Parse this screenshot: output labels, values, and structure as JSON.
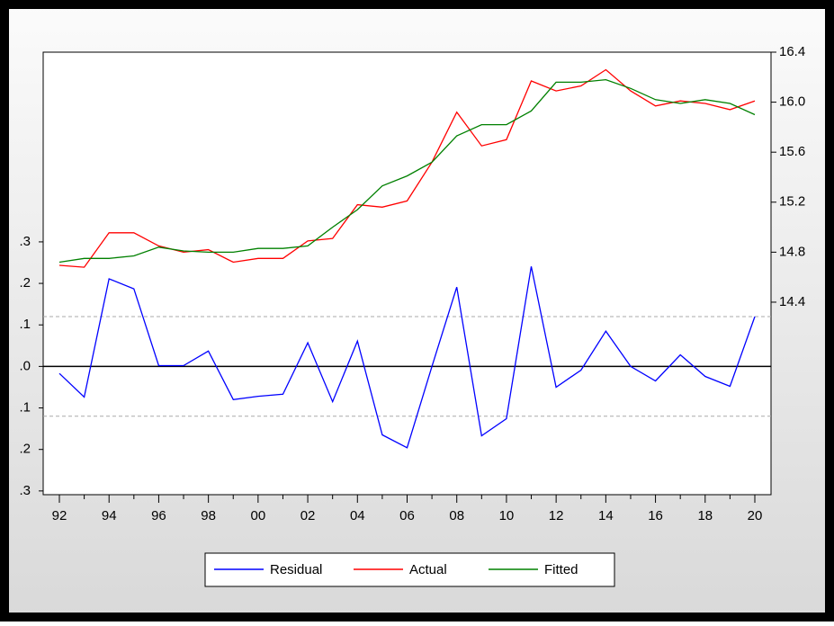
{
  "chart_data": {
    "type": "line",
    "categories": [
      "92",
      null,
      "94",
      null,
      "96",
      null,
      "98",
      null,
      "00",
      null,
      "02",
      null,
      "04",
      null,
      "06",
      null,
      "08",
      null,
      "10",
      null,
      "12",
      null,
      "14",
      null,
      "16",
      null,
      "18",
      null,
      "20"
    ],
    "series": [
      {
        "name": "Residual",
        "color": "#0000ff",
        "axis": "y",
        "values": [
          -0.017,
          -0.074,
          0.211,
          0.187,
          0.002,
          0.002,
          0.037,
          -0.08,
          -0.072,
          -0.067,
          0.057,
          -0.085,
          0.061,
          -0.165,
          -0.196,
          0.0,
          0.191,
          -0.167,
          -0.126,
          0.241,
          -0.05,
          -0.009,
          0.085,
          0.0,
          -0.035,
          0.028,
          -0.024,
          -0.048,
          0.12
        ]
      },
      {
        "name": "Actual",
        "color": "#ff0000",
        "axis": "y2",
        "values": [
          14.695,
          14.68,
          14.955,
          14.955,
          14.85,
          14.8,
          14.82,
          14.72,
          14.75,
          14.75,
          14.89,
          14.91,
          15.18,
          15.16,
          15.21,
          15.52,
          15.92,
          15.65,
          15.7,
          16.17,
          16.09,
          16.13,
          16.26,
          16.09,
          15.97,
          16.01,
          15.99,
          15.94,
          16.01
        ]
      },
      {
        "name": "Fitted",
        "color": "#008000",
        "axis": "y2",
        "values": [
          14.72,
          14.75,
          14.75,
          14.77,
          14.84,
          14.81,
          14.8,
          14.8,
          14.83,
          14.83,
          14.85,
          15.0,
          15.14,
          15.33,
          15.41,
          15.52,
          15.73,
          15.82,
          15.82,
          15.93,
          16.16,
          16.16,
          16.18,
          16.11,
          16.02,
          15.99,
          16.02,
          15.99,
          15.9
        ]
      }
    ],
    "ylim": [
      -0.309,
      0.757
    ],
    "yticks": [
      {
        "value": 0.3,
        "label": ".3"
      },
      {
        "value": 0.2,
        "label": ".2"
      },
      {
        "value": 0.1,
        "label": ".1"
      },
      {
        "value": 0,
        "label": ".0"
      },
      {
        "value": -0.1,
        "label": ".1"
      },
      {
        "value": -0.2,
        "label": ".2"
      },
      {
        "value": -0.3,
        "label": ".3"
      }
    ],
    "y2lim": [
      12.86,
      16.4
    ],
    "y2ticks": [
      14.4,
      14.8,
      15.2,
      {
        "value": 15.6,
        "label": "15.6"
      },
      {
        "value": 16,
        "label": "16.0"
      },
      16.4
    ],
    "reference_lines": [
      0.12,
      -0.12
    ],
    "zero_line": true,
    "legend": "bottom"
  }
}
